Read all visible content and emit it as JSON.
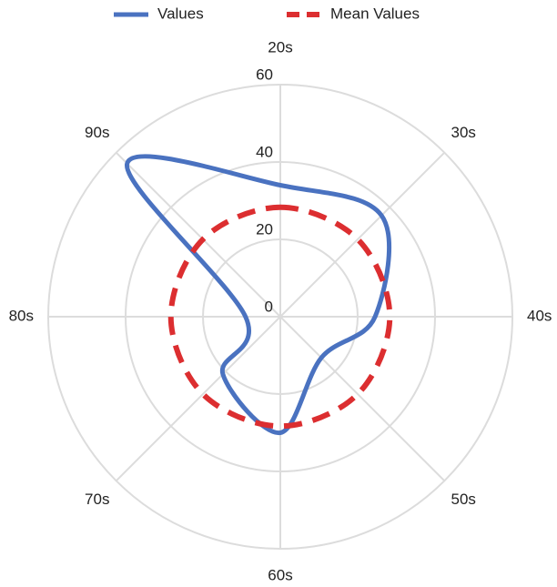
{
  "chart_data": {
    "type": "radar",
    "categories": [
      "20s",
      "30s",
      "40s",
      "50s",
      "60s",
      "70s",
      "80s",
      "90s"
    ],
    "series": [
      {
        "name": "Values",
        "color": "#4a72c0",
        "style": "solid",
        "values": [
          34,
          37,
          24.5,
          15,
          30,
          21,
          9,
          56
        ]
      },
      {
        "name": "Mean Values",
        "color": "#dc2e30",
        "style": "dashed",
        "values": [
          28.3,
          28.3,
          28.3,
          28.3,
          28.3,
          28.3,
          28.3,
          28.3
        ]
      }
    ],
    "rlim": [
      0,
      60
    ],
    "rticks": [
      0,
      20,
      40,
      60
    ],
    "grid": true,
    "legend": "top"
  }
}
